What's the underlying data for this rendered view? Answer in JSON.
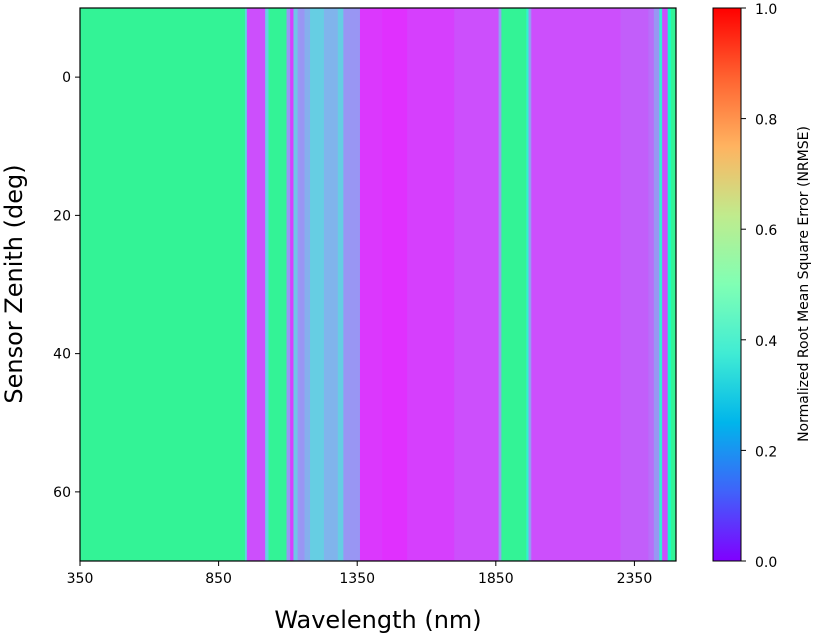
{
  "chart_data": {
    "type": "heatmap",
    "title": "",
    "xlabel": "Wavelength (nm)",
    "ylabel": "Sensor Zenith (deg)",
    "xlim": [
      350,
      2500
    ],
    "ylim": [
      -10,
      70
    ],
    "y_inverted": true,
    "x_ticks": [
      350,
      850,
      1350,
      1850,
      2350
    ],
    "y_ticks": [
      0,
      20,
      40,
      60
    ],
    "colorbar": {
      "label": "Normalized Root Mean Square Error (NRMSE)",
      "colormap": "rainbow",
      "vmin": 0.0,
      "vmax": 1.0,
      "ticks": [
        "0.0",
        "0.2",
        "0.4",
        "0.6",
        "0.8",
        "1.0"
      ]
    },
    "bands": [
      {
        "start": 350,
        "end": 945,
        "value": 0.6
      },
      {
        "start": 945,
        "end": 952,
        "value": 0.32
      },
      {
        "start": 952,
        "end": 1018,
        "value": 0.1
      },
      {
        "start": 1018,
        "end": 1030,
        "value": 0.3
      },
      {
        "start": 1030,
        "end": 1095,
        "value": 0.6
      },
      {
        "start": 1095,
        "end": 1108,
        "value": 0.2
      },
      {
        "start": 1108,
        "end": 1120,
        "value": 0.08
      },
      {
        "start": 1120,
        "end": 1135,
        "value": 0.28
      },
      {
        "start": 1135,
        "end": 1160,
        "value": 0.2
      },
      {
        "start": 1160,
        "end": 1180,
        "value": 0.24
      },
      {
        "start": 1180,
        "end": 1230,
        "value": 0.3
      },
      {
        "start": 1230,
        "end": 1280,
        "value": 0.25
      },
      {
        "start": 1280,
        "end": 1300,
        "value": 0.3
      },
      {
        "start": 1300,
        "end": 1360,
        "value": 0.2
      },
      {
        "start": 1360,
        "end": 1440,
        "value": 0.07
      },
      {
        "start": 1440,
        "end": 1530,
        "value": 0.06
      },
      {
        "start": 1530,
        "end": 1700,
        "value": 0.08
      },
      {
        "start": 1700,
        "end": 1860,
        "value": 0.1
      },
      {
        "start": 1860,
        "end": 1870,
        "value": 0.22
      },
      {
        "start": 1870,
        "end": 1960,
        "value": 0.6
      },
      {
        "start": 1960,
        "end": 1968,
        "value": 0.4
      },
      {
        "start": 1968,
        "end": 1978,
        "value": 0.2
      },
      {
        "start": 1978,
        "end": 2300,
        "value": 0.1
      },
      {
        "start": 2300,
        "end": 2400,
        "value": 0.12
      },
      {
        "start": 2400,
        "end": 2420,
        "value": 0.14
      },
      {
        "start": 2420,
        "end": 2440,
        "value": 0.2
      },
      {
        "start": 2440,
        "end": 2450,
        "value": 0.4
      },
      {
        "start": 2450,
        "end": 2470,
        "value": 0.1
      },
      {
        "start": 2470,
        "end": 2482,
        "value": 0.45
      },
      {
        "start": 2482,
        "end": 2500,
        "value": 0.6
      }
    ]
  }
}
